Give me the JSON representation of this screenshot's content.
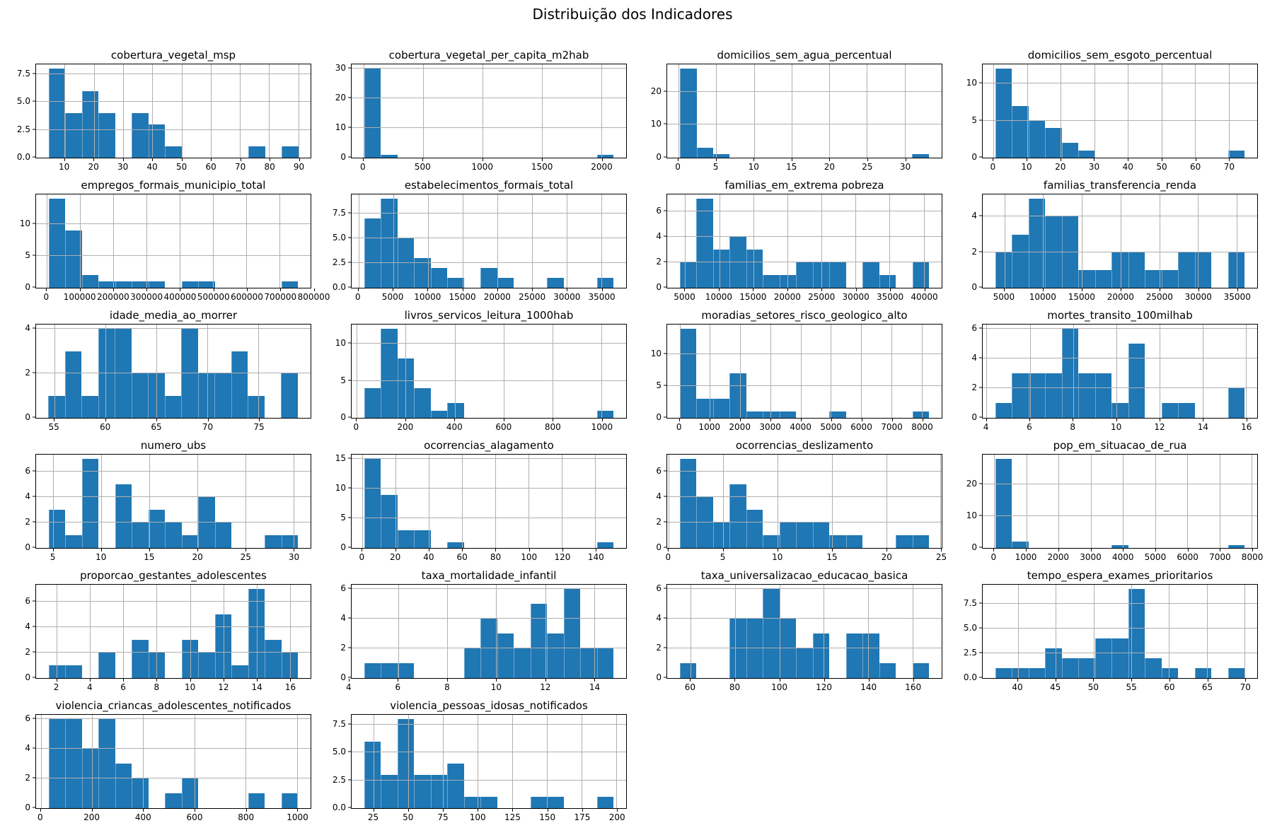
{
  "figure": {
    "title": "Distribuição dos Indicadores",
    "bar_color": "#1f77b4",
    "grid_color": "#b0b0b0",
    "n_observations_per_histogram": 32
  },
  "chart_data": [
    {
      "type": "bar",
      "title": "cobertura_vegetal_msp",
      "ylabel": "",
      "xlabel": "",
      "counts": [
        8,
        4,
        6,
        4,
        0,
        4,
        3,
        1,
        0,
        0,
        0,
        0,
        1,
        0,
        1
      ],
      "bin_start": 4.5,
      "bin_width": 5.7,
      "xlim": [
        0.2,
        94.2
      ],
      "xticks": [
        10,
        20,
        30,
        40,
        50,
        60,
        70,
        80,
        90
      ],
      "xtick_labels": [
        "10",
        "20",
        "30",
        "40",
        "50",
        "60",
        "70",
        "80",
        "90"
      ],
      "ylim": 8.4,
      "yticks": [
        0,
        2.5,
        5,
        7.5
      ],
      "ytick_labels": [
        "0.0",
        "2.5",
        "5.0",
        "7.5"
      ]
    },
    {
      "type": "bar",
      "title": "cobertura_vegetal_per_capita_m2hab",
      "ylabel": "",
      "xlabel": "",
      "counts": [
        30,
        1,
        0,
        0,
        0,
        0,
        0,
        0,
        0,
        0,
        0,
        0,
        0,
        0,
        1
      ],
      "bin_start": 5,
      "bin_width": 140,
      "xlim": [
        -100,
        2210
      ],
      "xticks": [
        0,
        500,
        1000,
        1500,
        2000
      ],
      "xtick_labels": [
        "0",
        "500",
        "1000",
        "1500",
        "2000"
      ],
      "ylim": 31.5,
      "yticks": [
        0,
        10,
        20,
        30
      ],
      "ytick_labels": [
        "0",
        "10",
        "20",
        "30"
      ]
    },
    {
      "type": "bar",
      "title": "domicilios_sem_agua_percentual",
      "ylabel": "",
      "xlabel": "",
      "counts": [
        27,
        3,
        1,
        0,
        0,
        0,
        0,
        0,
        0,
        0,
        0,
        0,
        0,
        0,
        1
      ],
      "bin_start": 0.2,
      "bin_width": 2.2,
      "xlim": [
        -1.5,
        34.9
      ],
      "xticks": [
        0,
        5,
        10,
        15,
        20,
        25,
        30
      ],
      "xtick_labels": [
        "0",
        "5",
        "10",
        "15",
        "20",
        "25",
        "30"
      ],
      "ylim": 28.35,
      "yticks": [
        0,
        10,
        20
      ],
      "ytick_labels": [
        "0",
        "10",
        "20"
      ]
    },
    {
      "type": "bar",
      "title": "domicilios_sem_esgoto_percentual",
      "ylabel": "",
      "xlabel": "",
      "counts": [
        12,
        7,
        5,
        4,
        2,
        1,
        0,
        0,
        0,
        0,
        0,
        0,
        0,
        0,
        1
      ],
      "bin_start": 0.5,
      "bin_width": 4.95,
      "xlim": [
        -3.2,
        78.5
      ],
      "xticks": [
        0,
        10,
        20,
        30,
        40,
        50,
        60,
        70
      ],
      "xtick_labels": [
        "0",
        "10",
        "20",
        "30",
        "40",
        "50",
        "60",
        "70"
      ],
      "ylim": 12.6,
      "yticks": [
        0,
        5,
        10
      ],
      "ytick_labels": [
        "0",
        "5",
        "10"
      ]
    },
    {
      "type": "bar",
      "title": "empregos_formais_municipio_total",
      "ylabel": "",
      "xlabel": "",
      "counts": [
        14,
        9,
        2,
        1,
        1,
        1,
        1,
        0,
        1,
        1,
        0,
        0,
        0,
        0,
        1
      ],
      "bin_start": 5000,
      "bin_width": 50000,
      "xlim": [
        -32500,
        792500
      ],
      "xticks": [
        0,
        100000,
        200000,
        300000,
        400000,
        500000,
        600000,
        700000,
        800000
      ],
      "xtick_labels": [
        "0",
        "100000",
        "200000",
        "300000",
        "400000",
        "500000",
        "600000",
        "700000",
        "800000"
      ],
      "ylim": 14.7,
      "yticks": [
        0,
        5,
        10
      ],
      "ytick_labels": [
        "0",
        "5",
        "10"
      ]
    },
    {
      "type": "bar",
      "title": "estabelecimentos_formais_total",
      "ylabel": "",
      "xlabel": "",
      "counts": [
        7,
        9,
        5,
        3,
        2,
        1,
        0,
        2,
        1,
        0,
        0,
        1,
        0,
        0,
        1
      ],
      "bin_start": 800,
      "bin_width": 2400,
      "xlim": [
        -1000,
        38600
      ],
      "xticks": [
        0,
        5000,
        10000,
        15000,
        20000,
        25000,
        30000,
        35000
      ],
      "xtick_labels": [
        "0",
        "5000",
        "10000",
        "15000",
        "20000",
        "25000",
        "30000",
        "35000"
      ],
      "ylim": 9.45,
      "yticks": [
        0,
        2.5,
        5,
        7.5
      ],
      "ytick_labels": [
        "0.0",
        "2.5",
        "5.0",
        "7.5"
      ]
    },
    {
      "type": "bar",
      "title": "familias_em_extrema pobreza",
      "ylabel": "",
      "xlabel": "",
      "counts": [
        2,
        7,
        3,
        4,
        3,
        1,
        1,
        2,
        2,
        2,
        0,
        2,
        1,
        0,
        2
      ],
      "bin_start": 4200,
      "bin_width": 2440,
      "xlim": [
        2370,
        42630
      ],
      "xticks": [
        5000,
        10000,
        15000,
        20000,
        25000,
        30000,
        35000,
        40000
      ],
      "xtick_labels": [
        "5000",
        "10000",
        "15000",
        "20000",
        "25000",
        "30000",
        "35000",
        "40000"
      ],
      "ylim": 7.35,
      "yticks": [
        0,
        2,
        4,
        6
      ],
      "ytick_labels": [
        "0",
        "2",
        "4",
        "6"
      ]
    },
    {
      "type": "bar",
      "title": "familias_transferencia_renda",
      "ylabel": "",
      "xlabel": "",
      "counts": [
        2,
        3,
        5,
        4,
        4,
        1,
        1,
        2,
        2,
        1,
        1,
        2,
        2,
        0,
        2
      ],
      "bin_start": 3800,
      "bin_width": 2150,
      "xlim": [
        2190,
        37660
      ],
      "xticks": [
        5000,
        10000,
        15000,
        20000,
        25000,
        30000,
        35000
      ],
      "xtick_labels": [
        "5000",
        "10000",
        "15000",
        "20000",
        "25000",
        "30000",
        "35000"
      ],
      "ylim": 5.25,
      "yticks": [
        0,
        2,
        4
      ],
      "ytick_labels": [
        "0",
        "2",
        "4"
      ]
    },
    {
      "type": "bar",
      "title": "idade_media_ao_morrer",
      "ylabel": "",
      "xlabel": "",
      "counts": [
        1,
        3,
        1,
        4,
        4,
        2,
        2,
        1,
        4,
        2,
        2,
        3,
        1,
        0,
        2
      ],
      "bin_start": 54.4,
      "bin_width": 1.63,
      "xlim": [
        53.2,
        80.1
      ],
      "xticks": [
        55,
        60,
        65,
        70,
        75
      ],
      "xtick_labels": [
        "55",
        "60",
        "65",
        "70",
        "75"
      ],
      "ylim": 4.2,
      "yticks": [
        0,
        2,
        4
      ],
      "ytick_labels": [
        "0",
        "2",
        "4"
      ]
    },
    {
      "type": "bar",
      "title": "livros_servicos_leitura_1000hab",
      "ylabel": "",
      "xlabel": "",
      "counts": [
        4,
        12,
        8,
        4,
        1,
        2,
        0,
        0,
        0,
        0,
        0,
        0,
        0,
        0,
        1
      ],
      "bin_start": 30,
      "bin_width": 68,
      "xlim": [
        -21,
        1101
      ],
      "xticks": [
        0,
        200,
        400,
        600,
        800,
        1000
      ],
      "xtick_labels": [
        "0",
        "200",
        "400",
        "600",
        "800",
        "1000"
      ],
      "ylim": 12.6,
      "yticks": [
        0,
        5,
        10
      ],
      "ytick_labels": [
        "0",
        "5",
        "10"
      ]
    },
    {
      "type": "bar",
      "title": "moradias_setores_risco_geologico_alto",
      "ylabel": "",
      "xlabel": "",
      "counts": [
        14,
        3,
        3,
        7,
        1,
        1,
        1,
        0,
        0,
        1,
        0,
        0,
        0,
        0,
        1
      ],
      "bin_start": 0,
      "bin_width": 550,
      "xlim": [
        -413,
        8663
      ],
      "xticks": [
        0,
        1000,
        2000,
        3000,
        4000,
        5000,
        6000,
        7000,
        8000
      ],
      "xtick_labels": [
        "0",
        "1000",
        "2000",
        "3000",
        "4000",
        "5000",
        "6000",
        "7000",
        "8000"
      ],
      "ylim": 14.7,
      "yticks": [
        0,
        5,
        10
      ],
      "ytick_labels": [
        "0",
        "5",
        "10"
      ]
    },
    {
      "type": "bar",
      "title": "mortes_transito_100milhab",
      "ylabel": "",
      "xlabel": "",
      "counts": [
        1,
        3,
        3,
        3,
        6,
        3,
        3,
        1,
        5,
        0,
        1,
        1,
        0,
        0,
        2
      ],
      "bin_start": 4.4,
      "bin_width": 0.77,
      "xlim": [
        3.82,
        16.53
      ],
      "xticks": [
        4,
        6,
        8,
        10,
        12,
        14,
        16
      ],
      "xtick_labels": [
        "4",
        "6",
        "8",
        "10",
        "12",
        "14",
        "16"
      ],
      "ylim": 6.3,
      "yticks": [
        0,
        2,
        4,
        6
      ],
      "ytick_labels": [
        "0",
        "2",
        "4",
        "6"
      ]
    },
    {
      "type": "bar",
      "title": "numero_ubs",
      "ylabel": "",
      "xlabel": "",
      "counts": [
        3,
        1,
        7,
        0,
        5,
        2,
        3,
        2,
        1,
        4,
        2,
        0,
        0,
        1,
        1
      ],
      "bin_start": 4.5,
      "bin_width": 1.733,
      "xlim": [
        3.2,
        31.8
      ],
      "xticks": [
        5,
        10,
        15,
        20,
        25,
        30
      ],
      "xtick_labels": [
        "5",
        "10",
        "15",
        "20",
        "25",
        "30"
      ],
      "ylim": 7.35,
      "yticks": [
        0,
        2,
        4,
        6
      ],
      "ytick_labels": [
        "0",
        "2",
        "4",
        "6"
      ]
    },
    {
      "type": "bar",
      "title": "ocorrencias_alagamento",
      "ylabel": "",
      "xlabel": "",
      "counts": [
        15,
        9,
        3,
        3,
        0,
        1,
        0,
        0,
        0,
        0,
        0,
        0,
        0,
        0,
        1
      ],
      "bin_start": 1,
      "bin_width": 10,
      "xlim": [
        -6.5,
        158.5
      ],
      "xticks": [
        0,
        20,
        40,
        60,
        80,
        100,
        120,
        140
      ],
      "xtick_labels": [
        "0",
        "20",
        "40",
        "60",
        "80",
        "100",
        "120",
        "140"
      ],
      "ylim": 15.75,
      "yticks": [
        0,
        5,
        10,
        15
      ],
      "ytick_labels": [
        "0",
        "5",
        "10",
        "15"
      ]
    },
    {
      "type": "bar",
      "title": "ocorrencias_deslizamento",
      "ylabel": "",
      "xlabel": "",
      "counts": [
        7,
        4,
        2,
        5,
        3,
        1,
        2,
        2,
        2,
        1,
        1,
        0,
        0,
        1,
        1
      ],
      "bin_start": 1,
      "bin_width": 1.53,
      "xlim": [
        -0.15,
        25.1
      ],
      "xticks": [
        0,
        5,
        10,
        15,
        20,
        25
      ],
      "xtick_labels": [
        "0",
        "5",
        "10",
        "15",
        "20",
        "25"
      ],
      "ylim": 7.35,
      "yticks": [
        0,
        2,
        4,
        6
      ],
      "ytick_labels": [
        "0",
        "2",
        "4",
        "6"
      ]
    },
    {
      "type": "bar",
      "title": "pop_em_situacao_de_rua",
      "ylabel": "",
      "xlabel": "",
      "counts": [
        28,
        2,
        0,
        0,
        0,
        0,
        0,
        1,
        0,
        0,
        0,
        0,
        0,
        0,
        1
      ],
      "bin_start": 30,
      "bin_width": 517,
      "xlim": [
        -358,
        8173
      ],
      "xticks": [
        0,
        1000,
        2000,
        3000,
        4000,
        5000,
        6000,
        7000,
        8000
      ],
      "xtick_labels": [
        "0",
        "1000",
        "2000",
        "3000",
        "4000",
        "5000",
        "6000",
        "7000",
        "8000"
      ],
      "ylim": 29.4,
      "yticks": [
        0,
        10,
        20
      ],
      "ytick_labels": [
        "0",
        "10",
        "20"
      ]
    },
    {
      "type": "bar",
      "title": "proporcao_gestantes_adolescentes",
      "ylabel": "",
      "xlabel": "",
      "counts": [
        1,
        1,
        0,
        2,
        0,
        3,
        2,
        0,
        3,
        2,
        5,
        1,
        7,
        3,
        2
      ],
      "bin_start": 1.5,
      "bin_width": 1.0,
      "xlim": [
        0.75,
        17.25
      ],
      "xticks": [
        2,
        4,
        6,
        8,
        10,
        12,
        14,
        16
      ],
      "xtick_labels": [
        "2",
        "4",
        "6",
        "8",
        "10",
        "12",
        "14",
        "16"
      ],
      "ylim": 7.35,
      "yticks": [
        0,
        2,
        4,
        6
      ],
      "ytick_labels": [
        "0",
        "2",
        "4",
        "6"
      ]
    },
    {
      "type": "bar",
      "title": "taxa_mortalidade_infantil",
      "ylabel": "",
      "xlabel": "",
      "counts": [
        1,
        1,
        1,
        0,
        0,
        0,
        2,
        4,
        3,
        2,
        5,
        3,
        6,
        2,
        2
      ],
      "bin_start": 4.6,
      "bin_width": 0.68,
      "xlim": [
        4.09,
        15.31
      ],
      "xticks": [
        4,
        6,
        8,
        10,
        12,
        14
      ],
      "xtick_labels": [
        "4",
        "6",
        "8",
        "10",
        "12",
        "14"
      ],
      "ylim": 6.3,
      "yticks": [
        0,
        2,
        4,
        6
      ],
      "ytick_labels": [
        "0",
        "2",
        "4",
        "6"
      ]
    },
    {
      "type": "bar",
      "title": "taxa_universalizacao_educacao_basica",
      "ylabel": "",
      "xlabel": "",
      "counts": [
        1,
        0,
        0,
        4,
        4,
        6,
        4,
        2,
        3,
        0,
        3,
        3,
        1,
        0,
        1
      ],
      "bin_start": 55,
      "bin_width": 7.5,
      "xlim": [
        49.4,
        173.1
      ],
      "xticks": [
        60,
        80,
        100,
        120,
        140,
        160
      ],
      "xtick_labels": [
        "60",
        "80",
        "100",
        "120",
        "140",
        "160"
      ],
      "ylim": 6.3,
      "yticks": [
        0,
        2,
        4,
        6
      ],
      "ytick_labels": [
        "0",
        "2",
        "4",
        "6"
      ]
    },
    {
      "type": "bar",
      "title": "tempo_espera_exames_prioritarios",
      "ylabel": "",
      "xlabel": "",
      "counts": [
        1,
        1,
        1,
        3,
        2,
        2,
        4,
        4,
        9,
        2,
        1,
        0,
        1,
        0,
        1
      ],
      "bin_start": 37,
      "bin_width": 2.2,
      "xlim": [
        35.35,
        71.65
      ],
      "xticks": [
        40,
        45,
        50,
        55,
        60,
        65,
        70
      ],
      "xtick_labels": [
        "40",
        "45",
        "50",
        "55",
        "60",
        "65",
        "70"
      ],
      "ylim": 9.45,
      "yticks": [
        0,
        2.5,
        5,
        7.5
      ],
      "ytick_labels": [
        "0.0",
        "2.5",
        "5.0",
        "7.5"
      ]
    },
    {
      "type": "bar",
      "title": "violencia_criancas_adolescentes_notificados",
      "ylabel": "",
      "xlabel": "",
      "counts": [
        6,
        6,
        4,
        6,
        3,
        2,
        0,
        1,
        2,
        0,
        0,
        0,
        1,
        0,
        1
      ],
      "bin_start": 30,
      "bin_width": 65,
      "xlim": [
        -18.7,
        1053.7
      ],
      "xticks": [
        0,
        200,
        400,
        600,
        800,
        1000
      ],
      "xtick_labels": [
        "0",
        "200",
        "400",
        "600",
        "800",
        "1000"
      ],
      "ylim": 6.3,
      "yticks": [
        0,
        2,
        4,
        6
      ],
      "ytick_labels": [
        "0",
        "2",
        "4",
        "6"
      ]
    },
    {
      "type": "bar",
      "title": "violencia_pessoas_idosas_notificados",
      "ylabel": "",
      "xlabel": "",
      "counts": [
        6,
        3,
        8,
        3,
        3,
        4,
        1,
        1,
        0,
        0,
        1,
        1,
        0,
        0,
        1
      ],
      "bin_start": 18,
      "bin_width": 12,
      "xlim": [
        9,
        207
      ],
      "xticks": [
        25,
        50,
        75,
        100,
        125,
        150,
        175,
        200
      ],
      "xtick_labels": [
        "25",
        "50",
        "75",
        "100",
        "125",
        "150",
        "175",
        "200"
      ],
      "ylim": 8.4,
      "yticks": [
        0,
        2.5,
        5,
        7.5
      ],
      "ytick_labels": [
        "0.0",
        "2.5",
        "5.0",
        "7.5"
      ]
    }
  ]
}
